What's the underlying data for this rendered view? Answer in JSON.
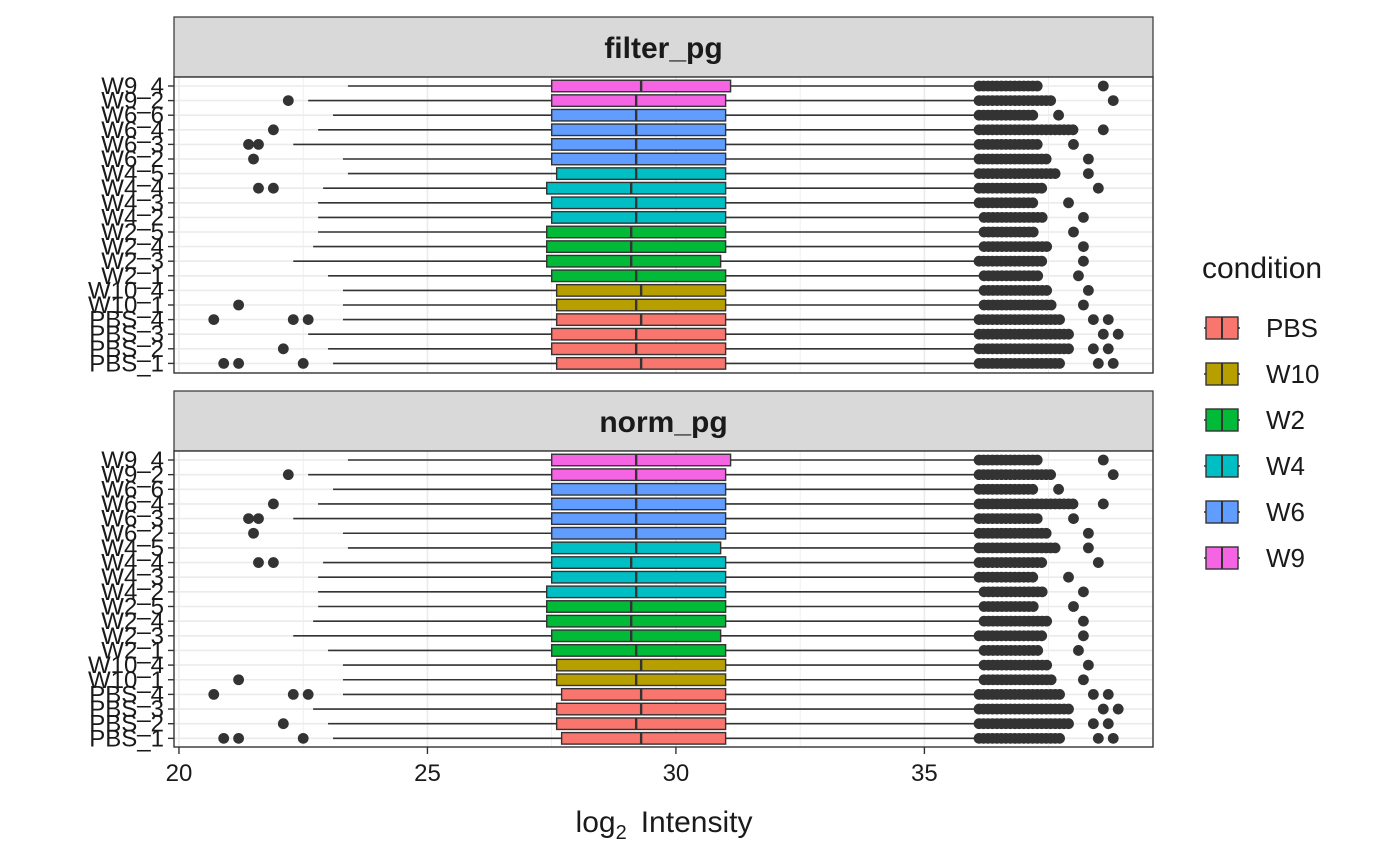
{
  "chart_data": {
    "type": "boxplot",
    "orientation": "horizontal",
    "xlabel_main": "log",
    "xlabel_sub": "2",
    "xlabel_rest": "Intensity",
    "xlim": [
      19.9,
      39.6
    ],
    "x_ticks": [
      20,
      25,
      30,
      35
    ],
    "x_tick_labels": [
      "20",
      "25",
      "30",
      "35"
    ],
    "samples": [
      "PBS_1",
      "PBS_2",
      "PBS_3",
      "PBS_4",
      "W10_1",
      "W10_4",
      "W2_1",
      "W2_3",
      "W2_4",
      "W2_5",
      "W4_2",
      "W4_3",
      "W4_4",
      "W4_5",
      "W6_2",
      "W6_3",
      "W6_4",
      "W6_6",
      "W9_2",
      "W9_4"
    ],
    "sample_condition": [
      "PBS",
      "PBS",
      "PBS",
      "PBS",
      "W10",
      "W10",
      "W2",
      "W2",
      "W2",
      "W2",
      "W4",
      "W4",
      "W4",
      "W4",
      "W6",
      "W6",
      "W6",
      "W6",
      "W9",
      "W9"
    ],
    "legend": {
      "title": "condition",
      "entries": [
        {
          "name": "PBS",
          "color": "#F8766D"
        },
        {
          "name": "W10",
          "color": "#B79F00"
        },
        {
          "name": "W2",
          "color": "#00BA38"
        },
        {
          "name": "W4",
          "color": "#00BFC4"
        },
        {
          "name": "W6",
          "color": "#619CFF"
        },
        {
          "name": "W9",
          "color": "#F564E3"
        }
      ]
    },
    "panels": [
      {
        "title": "filter_pg",
        "boxes": [
          {
            "q1": 27.6,
            "med": 29.3,
            "q3": 31.0,
            "wlo": 23.1,
            "whi": 36.0,
            "out_lo": [
              20.9,
              21.2,
              22.5
            ],
            "out_hi": [
              36.1,
              37.8,
              38.5,
              38.8
            ]
          },
          {
            "q1": 27.5,
            "med": 29.2,
            "q3": 31.0,
            "wlo": 23.0,
            "whi": 36.0,
            "out_lo": [
              22.1
            ],
            "out_hi": [
              36.1,
              37.9,
              38.4,
              38.7
            ]
          },
          {
            "q1": 27.5,
            "med": 29.2,
            "q3": 31.0,
            "wlo": 22.6,
            "whi": 36.0,
            "out_lo": [],
            "out_hi": [
              36.1,
              37.9,
              38.6,
              38.9
            ]
          },
          {
            "q1": 27.6,
            "med": 29.3,
            "q3": 31.0,
            "wlo": 23.3,
            "whi": 36.0,
            "out_lo": [
              20.7,
              22.3,
              22.6
            ],
            "out_hi": [
              36.1,
              37.8,
              38.4,
              38.7
            ]
          },
          {
            "q1": 27.6,
            "med": 29.2,
            "q3": 31.0,
            "wlo": 23.3,
            "whi": 36.1,
            "out_lo": [
              21.2
            ],
            "out_hi": [
              36.2,
              37.6,
              38.2
            ]
          },
          {
            "q1": 27.6,
            "med": 29.3,
            "q3": 31.0,
            "wlo": 23.3,
            "whi": 36.1,
            "out_lo": [],
            "out_hi": [
              36.2,
              37.5,
              38.3
            ]
          },
          {
            "q1": 27.5,
            "med": 29.2,
            "q3": 31.0,
            "wlo": 23.0,
            "whi": 36.1,
            "out_lo": [],
            "out_hi": [
              36.2,
              37.3,
              38.1
            ]
          },
          {
            "q1": 27.4,
            "med": 29.1,
            "q3": 30.9,
            "wlo": 22.3,
            "whi": 36.0,
            "out_lo": [],
            "out_hi": [
              36.1,
              37.4,
              38.2
            ]
          },
          {
            "q1": 27.4,
            "med": 29.1,
            "q3": 31.0,
            "wlo": 22.7,
            "whi": 36.1,
            "out_lo": [],
            "out_hi": [
              36.2,
              37.5,
              38.2
            ]
          },
          {
            "q1": 27.4,
            "med": 29.1,
            "q3": 31.0,
            "wlo": 22.8,
            "whi": 36.1,
            "out_lo": [],
            "out_hi": [
              36.2,
              37.2,
              38.0
            ]
          },
          {
            "q1": 27.5,
            "med": 29.2,
            "q3": 31.0,
            "wlo": 22.8,
            "whi": 36.1,
            "out_lo": [],
            "out_hi": [
              36.2,
              37.4,
              38.2
            ]
          },
          {
            "q1": 27.5,
            "med": 29.2,
            "q3": 31.0,
            "wlo": 22.8,
            "whi": 36.0,
            "out_lo": [],
            "out_hi": [
              36.1,
              37.2,
              37.9
            ]
          },
          {
            "q1": 27.4,
            "med": 29.1,
            "q3": 31.0,
            "wlo": 22.9,
            "whi": 36.0,
            "out_lo": [
              21.6,
              21.9
            ],
            "out_hi": [
              36.1,
              37.4,
              38.5
            ]
          },
          {
            "q1": 27.6,
            "med": 29.2,
            "q3": 31.0,
            "wlo": 23.4,
            "whi": 36.0,
            "out_lo": [],
            "out_hi": [
              36.1,
              37.7,
              38.3
            ]
          },
          {
            "q1": 27.5,
            "med": 29.2,
            "q3": 31.0,
            "wlo": 23.3,
            "whi": 36.0,
            "out_lo": [
              21.5
            ],
            "out_hi": [
              36.1,
              37.5,
              38.3
            ]
          },
          {
            "q1": 27.5,
            "med": 29.2,
            "q3": 31.0,
            "wlo": 22.3,
            "whi": 36.0,
            "out_lo": [
              21.4,
              21.6
            ],
            "out_hi": [
              36.1,
              37.3,
              38.0
            ]
          },
          {
            "q1": 27.5,
            "med": 29.2,
            "q3": 31.0,
            "wlo": 22.8,
            "whi": 36.0,
            "out_lo": [
              21.9
            ],
            "out_hi": [
              36.1,
              38.0,
              38.6
            ]
          },
          {
            "q1": 27.5,
            "med": 29.2,
            "q3": 31.0,
            "wlo": 23.1,
            "whi": 36.0,
            "out_lo": [],
            "out_hi": [
              36.1,
              37.2,
              37.7
            ]
          },
          {
            "q1": 27.5,
            "med": 29.2,
            "q3": 31.0,
            "wlo": 22.6,
            "whi": 36.0,
            "out_lo": [
              22.2
            ],
            "out_hi": [
              36.1,
              37.6,
              38.8
            ]
          },
          {
            "q1": 27.5,
            "med": 29.3,
            "q3": 31.1,
            "wlo": 23.4,
            "whi": 36.0,
            "out_lo": [],
            "out_hi": [
              36.1,
              37.3,
              38.6
            ]
          }
        ]
      },
      {
        "title": "norm_pg",
        "boxes": [
          {
            "q1": 27.7,
            "med": 29.3,
            "q3": 31.0,
            "wlo": 23.1,
            "whi": 36.0,
            "out_lo": [
              20.9,
              21.2,
              22.5
            ],
            "out_hi": [
              36.1,
              37.8,
              38.5,
              38.8
            ]
          },
          {
            "q1": 27.6,
            "med": 29.2,
            "q3": 31.0,
            "wlo": 23.0,
            "whi": 36.0,
            "out_lo": [
              22.1
            ],
            "out_hi": [
              36.1,
              37.9,
              38.4,
              38.7
            ]
          },
          {
            "q1": 27.6,
            "med": 29.3,
            "q3": 31.0,
            "wlo": 22.7,
            "whi": 36.0,
            "out_lo": [],
            "out_hi": [
              36.1,
              37.9,
              38.6,
              38.9
            ]
          },
          {
            "q1": 27.7,
            "med": 29.3,
            "q3": 31.0,
            "wlo": 23.3,
            "whi": 36.0,
            "out_lo": [
              20.7,
              22.3,
              22.6
            ],
            "out_hi": [
              36.1,
              37.8,
              38.4,
              38.7
            ]
          },
          {
            "q1": 27.6,
            "med": 29.2,
            "q3": 31.0,
            "wlo": 23.3,
            "whi": 36.1,
            "out_lo": [
              21.2
            ],
            "out_hi": [
              36.2,
              37.6,
              38.2
            ]
          },
          {
            "q1": 27.6,
            "med": 29.3,
            "q3": 31.0,
            "wlo": 23.3,
            "whi": 36.1,
            "out_lo": [],
            "out_hi": [
              36.2,
              37.5,
              38.3
            ]
          },
          {
            "q1": 27.5,
            "med": 29.2,
            "q3": 31.0,
            "wlo": 23.0,
            "whi": 36.1,
            "out_lo": [],
            "out_hi": [
              36.2,
              37.3,
              38.1
            ]
          },
          {
            "q1": 27.5,
            "med": 29.1,
            "q3": 30.9,
            "wlo": 22.3,
            "whi": 36.0,
            "out_lo": [],
            "out_hi": [
              36.1,
              37.4,
              38.2
            ]
          },
          {
            "q1": 27.4,
            "med": 29.1,
            "q3": 31.0,
            "wlo": 22.7,
            "whi": 36.1,
            "out_lo": [],
            "out_hi": [
              36.2,
              37.5,
              38.2
            ]
          },
          {
            "q1": 27.4,
            "med": 29.1,
            "q3": 31.0,
            "wlo": 22.8,
            "whi": 36.1,
            "out_lo": [],
            "out_hi": [
              36.2,
              37.2,
              38.0
            ]
          },
          {
            "q1": 27.4,
            "med": 29.2,
            "q3": 31.0,
            "wlo": 22.8,
            "whi": 36.1,
            "out_lo": [],
            "out_hi": [
              36.2,
              37.4,
              38.2
            ]
          },
          {
            "q1": 27.5,
            "med": 29.2,
            "q3": 31.0,
            "wlo": 22.8,
            "whi": 36.0,
            "out_lo": [],
            "out_hi": [
              36.1,
              37.2,
              37.9
            ]
          },
          {
            "q1": 27.5,
            "med": 29.1,
            "q3": 31.0,
            "wlo": 22.9,
            "whi": 36.0,
            "out_lo": [
              21.6,
              21.9
            ],
            "out_hi": [
              36.1,
              37.4,
              38.5
            ]
          },
          {
            "q1": 27.5,
            "med": 29.2,
            "q3": 30.9,
            "wlo": 23.4,
            "whi": 36.0,
            "out_lo": [],
            "out_hi": [
              36.1,
              37.7,
              38.3
            ]
          },
          {
            "q1": 27.5,
            "med": 29.2,
            "q3": 31.0,
            "wlo": 23.3,
            "whi": 36.0,
            "out_lo": [
              21.5
            ],
            "out_hi": [
              36.1,
              37.5,
              38.3
            ]
          },
          {
            "q1": 27.5,
            "med": 29.2,
            "q3": 31.0,
            "wlo": 22.3,
            "whi": 36.0,
            "out_lo": [
              21.4,
              21.6
            ],
            "out_hi": [
              36.1,
              37.3,
              38.0
            ]
          },
          {
            "q1": 27.5,
            "med": 29.2,
            "q3": 31.0,
            "wlo": 22.8,
            "whi": 36.0,
            "out_lo": [
              21.9
            ],
            "out_hi": [
              36.1,
              38.0,
              38.6
            ]
          },
          {
            "q1": 27.5,
            "med": 29.2,
            "q3": 31.0,
            "wlo": 23.1,
            "whi": 36.0,
            "out_lo": [],
            "out_hi": [
              36.1,
              37.2,
              37.7
            ]
          },
          {
            "q1": 27.5,
            "med": 29.2,
            "q3": 31.0,
            "wlo": 22.6,
            "whi": 36.0,
            "out_lo": [
              22.2
            ],
            "out_hi": [
              36.1,
              37.6,
              38.8
            ]
          },
          {
            "q1": 27.5,
            "med": 29.2,
            "q3": 31.1,
            "wlo": 23.4,
            "whi": 36.0,
            "out_lo": [],
            "out_hi": [
              36.1,
              37.3,
              38.6
            ]
          }
        ]
      }
    ]
  }
}
